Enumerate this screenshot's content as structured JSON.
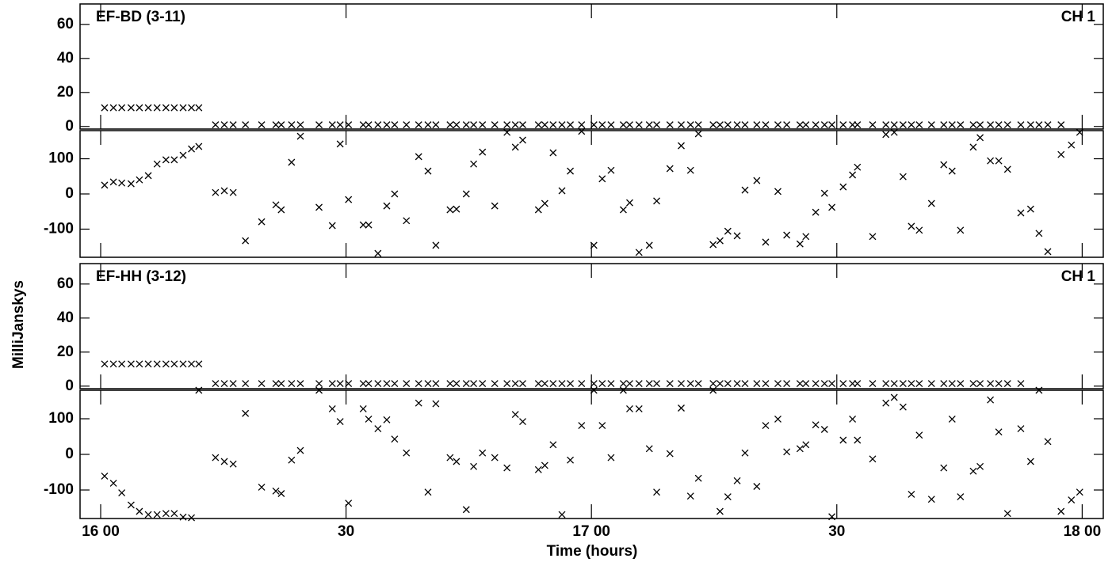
{
  "ylabel": "MilliJanskys",
  "xlabel": "Time (hours)",
  "chart_data": [
    {
      "type": "scatter",
      "title": "EF-BD (3-11)",
      "label": "CH 1",
      "color": "#000000",
      "xlim": [
        15.958,
        18.043
      ],
      "xticks": [
        {
          "value": 16,
          "label": "16 00"
        },
        {
          "value": 16.5,
          "label": "30"
        },
        {
          "value": 17,
          "label": "17 00"
        },
        {
          "value": 17.5,
          "label": "30"
        },
        {
          "value": 18,
          "label": "18 00"
        }
      ],
      "x": [
        16.008,
        16.026,
        16.043,
        16.062,
        16.079,
        16.097,
        16.115,
        16.133,
        16.15,
        16.168,
        16.185,
        16.2,
        16.234,
        16.252,
        16.27,
        16.295,
        16.328,
        16.357,
        16.368,
        16.389,
        16.407,
        16.445,
        16.472,
        16.488,
        16.505,
        16.535,
        16.546,
        16.565,
        16.583,
        16.599,
        16.623,
        16.648,
        16.667,
        16.683,
        16.712,
        16.725,
        16.745,
        16.76,
        16.778,
        16.803,
        16.828,
        16.845,
        16.86,
        16.892,
        16.905,
        16.922,
        16.94,
        16.957,
        16.98,
        17.005,
        17.022,
        17.04,
        17.065,
        17.078,
        17.097,
        17.118,
        17.133,
        17.16,
        17.183,
        17.202,
        17.218,
        17.248,
        17.262,
        17.278,
        17.297,
        17.313,
        17.337,
        17.355,
        17.38,
        17.398,
        17.425,
        17.437,
        17.457,
        17.475,
        17.49,
        17.513,
        17.532,
        17.542,
        17.573,
        17.6,
        17.617,
        17.635,
        17.652,
        17.668,
        17.693,
        17.718,
        17.735,
        17.752,
        17.778,
        17.792,
        17.813,
        17.83,
        17.848,
        17.875,
        17.895,
        17.912,
        17.93,
        17.957,
        17.978,
        17.995
      ],
      "panels": [
        {
          "ylim": [
            -1.5,
            72
          ],
          "yticks": [
            0,
            20,
            40,
            60
          ],
          "values": [
            11,
            11,
            11,
            11,
            11,
            11,
            11,
            11,
            11,
            11,
            11,
            11,
            1,
            1,
            1,
            1,
            1,
            1,
            1,
            1,
            1,
            1,
            1,
            1,
            1,
            1,
            1,
            1,
            1,
            1,
            1,
            1,
            1,
            1,
            1,
            1,
            1,
            1,
            1,
            1,
            1,
            1,
            1,
            1,
            1,
            1,
            1,
            1,
            1,
            1,
            1,
            1,
            1,
            1,
            1,
            1,
            1,
            1,
            1,
            1,
            1,
            1,
            1,
            1,
            1,
            1,
            1,
            1,
            1,
            1,
            1,
            1,
            1,
            1,
            1,
            1,
            1,
            1,
            1,
            1,
            1,
            1,
            1,
            1,
            1,
            1,
            1,
            1,
            1,
            1,
            1,
            1,
            1,
            1,
            1,
            1,
            1,
            1
          ]
        },
        {
          "ylim": [
            -180,
            180
          ],
          "yticks": [
            -100,
            0,
            100
          ],
          "values": [
            25,
            34,
            31,
            29,
            40,
            52,
            85,
            97,
            97,
            110,
            128,
            135,
            4,
            9,
            4,
            -133,
            -79,
            -31,
            -45,
            90,
            164,
            -38,
            -90,
            142,
            -16,
            -88,
            -88,
            -169,
            -34,
            0,
            -76,
            106,
            65,
            -146,
            -45,
            -43,
            0,
            85,
            119,
            -34,
            175,
            133,
            153,
            -45,
            -27,
            117,
            9,
            65,
            178,
            -146,
            43,
            67,
            -45,
            -25,
            -166,
            -146,
            -20,
            72,
            137,
            67,
            171,
            -144,
            -133,
            -106,
            -119,
            11,
            38,
            -137,
            7,
            -117,
            -142,
            -121,
            -52,
            2,
            -38,
            20,
            54,
            76,
            -121,
            169,
            175,
            49,
            -92,
            -103,
            -27,
            83,
            65,
            -103,
            133,
            160,
            94,
            94,
            70,
            -54,
            -43,
            -112,
            -164,
            112,
            139,
            175
          ]
        }
      ]
    },
    {
      "type": "scatter",
      "title": "EF-HH (3-12)",
      "label": "CH 1",
      "color": "#000000",
      "xlim": [
        15.958,
        18.043
      ],
      "xticks": [
        {
          "value": 16,
          "label": "16 00"
        },
        {
          "value": 16.5,
          "label": "30"
        },
        {
          "value": 17,
          "label": "17 00"
        },
        {
          "value": 17.5,
          "label": "30"
        },
        {
          "value": 18,
          "label": "18 00"
        }
      ],
      "x": [
        16.008,
        16.026,
        16.043,
        16.062,
        16.079,
        16.097,
        16.115,
        16.133,
        16.15,
        16.168,
        16.185,
        16.2,
        16.234,
        16.252,
        16.27,
        16.295,
        16.328,
        16.357,
        16.368,
        16.389,
        16.407,
        16.445,
        16.472,
        16.488,
        16.505,
        16.535,
        16.546,
        16.565,
        16.583,
        16.599,
        16.623,
        16.648,
        16.667,
        16.683,
        16.712,
        16.725,
        16.745,
        16.76,
        16.778,
        16.803,
        16.828,
        16.845,
        16.86,
        16.892,
        16.905,
        16.922,
        16.94,
        16.957,
        16.98,
        17.005,
        17.022,
        17.04,
        17.065,
        17.078,
        17.097,
        17.118,
        17.133,
        17.16,
        17.183,
        17.202,
        17.218,
        17.248,
        17.262,
        17.278,
        17.297,
        17.313,
        17.337,
        17.355,
        17.38,
        17.398,
        17.425,
        17.437,
        17.457,
        17.475,
        17.49,
        17.513,
        17.532,
        17.542,
        17.573,
        17.6,
        17.617,
        17.635,
        17.652,
        17.668,
        17.693,
        17.718,
        17.735,
        17.752,
        17.778,
        17.792,
        17.813,
        17.83,
        17.848,
        17.875,
        17.895,
        17.912,
        17.93,
        17.957,
        17.978,
        17.995
      ],
      "panels": [
        {
          "ylim": [
            -1.5,
            72
          ],
          "yticks": [
            0,
            20,
            40,
            60
          ],
          "values": [
            13,
            13,
            13,
            13,
            13,
            13,
            13,
            13,
            13,
            13,
            13,
            13,
            1.5,
            1.5,
            1.5,
            1.5,
            1.5,
            1.5,
            1.5,
            1.5,
            1.5,
            1.5,
            1.5,
            1.5,
            1.5,
            1.5,
            1.5,
            1.5,
            1.5,
            1.5,
            1.5,
            1.5,
            1.5,
            1.5,
            1.5,
            1.5,
            1.5,
            1.5,
            1.5,
            1.5,
            1.5,
            1.5,
            1.5,
            1.5,
            1.5,
            1.5,
            1.5,
            1.5,
            1.5,
            1.5,
            1.5,
            1.5,
            1.5,
            1.5,
            1.5,
            1.5,
            1.5,
            1.5,
            1.5,
            1.5,
            1.5,
            1.5,
            1.5,
            1.5,
            1.5,
            1.5,
            1.5,
            1.5,
            1.5,
            1.5,
            1.5,
            1.5,
            1.5,
            1.5,
            1.5,
            1.5,
            1.5,
            1.5,
            1.5,
            1.5,
            1.5,
            1.5,
            1.5,
            1.5,
            1.5,
            1.5,
            1.5,
            1.5,
            1.5,
            1.5,
            1.5,
            1.5,
            1.5,
            1.5
          ]
        },
        {
          "ylim": [
            -180,
            180
          ],
          "yticks": [
            -100,
            0,
            100
          ],
          "values": [
            -61,
            -81,
            -108,
            -142,
            -160,
            -169,
            -169,
            -166,
            -166,
            -176,
            -178,
            180,
            -9,
            -20,
            -27,
            115,
            -92,
            -103,
            -110,
            -16,
            11,
            180,
            128,
            92,
            -137,
            128,
            99,
            72,
            97,
            43,
            4,
            144,
            -106,
            142,
            -9,
            -20,
            -155,
            -34,
            4,
            -9,
            -38,
            112,
            92,
            -43,
            -31,
            27,
            -169,
            -16,
            81,
            180,
            81,
            -9,
            180,
            128,
            128,
            16,
            -106,
            2,
            130,
            -117,
            -67,
            180,
            -160,
            -119,
            -74,
            4,
            -90,
            81,
            99,
            7,
            16,
            27,
            83,
            70,
            -175,
            40,
            99,
            40,
            -13,
            144,
            160,
            133,
            -112,
            54,
            -126,
            -38,
            99,
            -119,
            -47,
            -34,
            153,
            63,
            -166,
            72,
            -20,
            180,
            36,
            -160,
            -128,
            -106
          ]
        }
      ]
    }
  ]
}
